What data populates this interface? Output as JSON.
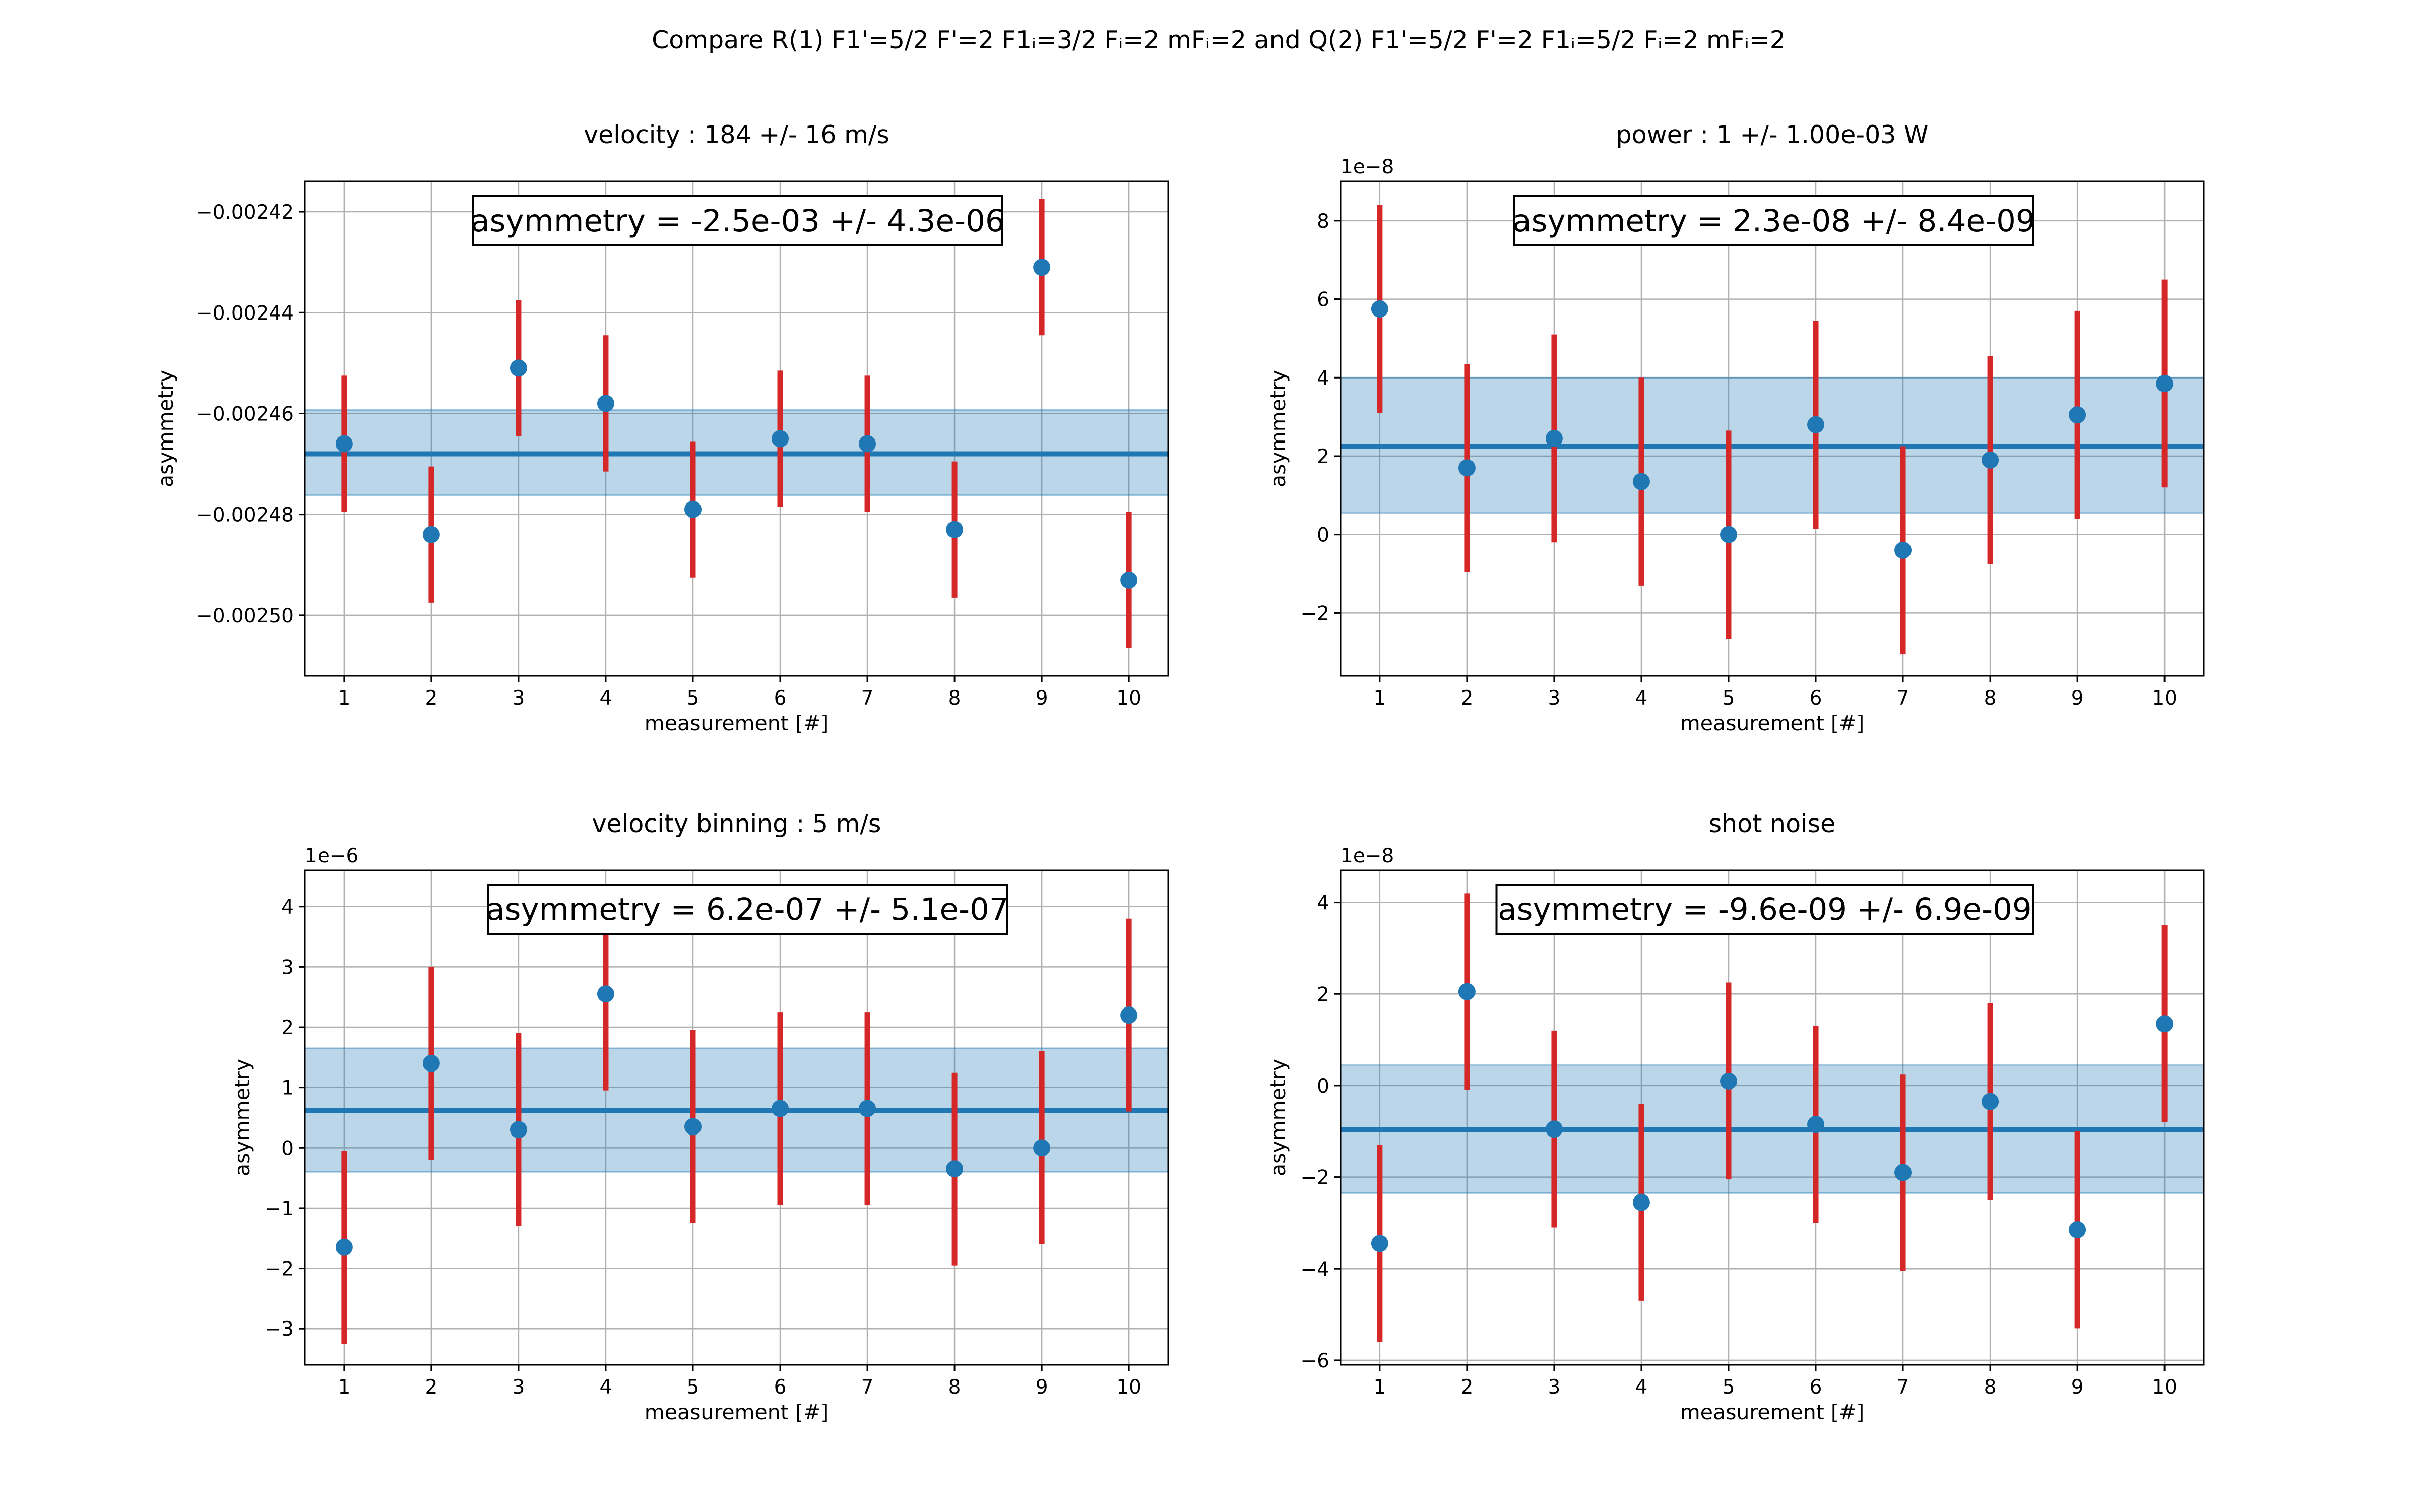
{
  "figure": {
    "title": "Compare R(1) F1'=5/2 F'=2 F1ᵢ=3/2 Fᵢ=2 mFᵢ=2 and Q(2) F1'=5/2 F'=2 F1ᵢ=5/2 Fᵢ=2 mFᵢ=2"
  },
  "colors": {
    "point": "#1f77b4",
    "errorbar": "#d62728",
    "mean_line": "#1f77b4",
    "band": "#1f77b4",
    "grid": "#b0b0b0"
  },
  "chart_data": [
    {
      "type": "scatter",
      "title": "velocity : 184 +/- 16 m/s",
      "xlabel": "measurement [#]",
      "ylabel": "asymmetry",
      "offset_label": "",
      "annotation": "asymmetry = -2.5e-03 +/- 4.3e-06",
      "grid": true,
      "xlim": [
        0.55,
        10.45
      ],
      "ylim": [
        -0.002512,
        -0.002414
      ],
      "x": [
        1,
        2,
        3,
        4,
        5,
        6,
        7,
        8,
        9,
        10
      ],
      "y": [
        -0.002466,
        -0.002484,
        -0.002451,
        -0.002458,
        -0.002479,
        -0.002465,
        -0.002466,
        -0.002483,
        -0.002431,
        -0.002493
      ],
      "yerr": [
        1.35e-05,
        1.35e-05,
        1.35e-05,
        1.35e-05,
        1.35e-05,
        1.35e-05,
        1.35e-05,
        1.35e-05,
        1.35e-05,
        1.35e-05
      ],
      "mean": -0.002468,
      "band": [
        -0.0024762,
        -0.0024593
      ],
      "yticks": [
        -0.0025,
        -0.00248,
        -0.00246,
        -0.00244,
        -0.00242
      ],
      "ytick_labels": [
        "−0.00250",
        "−0.00248",
        "−0.00246",
        "−0.00244",
        "−0.00242"
      ],
      "xticks": [
        1,
        2,
        3,
        4,
        5,
        6,
        7,
        8,
        9,
        10
      ],
      "xtick_labels": [
        "1",
        "2",
        "3",
        "4",
        "5",
        "6",
        "7",
        "8",
        "9",
        "10"
      ]
    },
    {
      "type": "scatter",
      "title": "power : 1 +/- 1.00e-03 W",
      "xlabel": "measurement [#]",
      "ylabel": "asymmetry",
      "offset_label": "1e−8",
      "annotation": "asymmetry = 2.3e-08 +/- 8.4e-09",
      "grid": true,
      "xlim": [
        0.55,
        10.45
      ],
      "ylim": [
        -3.6,
        9.0
      ],
      "x": [
        1,
        2,
        3,
        4,
        5,
        6,
        7,
        8,
        9,
        10
      ],
      "y": [
        5.75,
        1.7,
        2.45,
        1.35,
        0.0,
        2.8,
        -0.4,
        1.9,
        3.05,
        3.85
      ],
      "yerr": [
        2.65,
        2.65,
        2.65,
        2.65,
        2.65,
        2.65,
        2.65,
        2.65,
        2.65,
        2.65
      ],
      "mean": 2.25,
      "band": [
        0.55,
        4.0
      ],
      "yticks": [
        -2,
        0,
        2,
        4,
        6,
        8
      ],
      "ytick_labels": [
        "−2",
        "0",
        "2",
        "4",
        "6",
        "8"
      ],
      "xticks": [
        1,
        2,
        3,
        4,
        5,
        6,
        7,
        8,
        9,
        10
      ],
      "xtick_labels": [
        "1",
        "2",
        "3",
        "4",
        "5",
        "6",
        "7",
        "8",
        "9",
        "10"
      ]
    },
    {
      "type": "scatter",
      "title": "velocity binning : 5 m/s",
      "xlabel": "measurement [#]",
      "ylabel": "asymmetry",
      "offset_label": "1e−6",
      "annotation": "asymmetry = 6.2e-07 +/- 5.1e-07",
      "grid": true,
      "xlim": [
        0.55,
        10.45
      ],
      "ylim": [
        -3.6,
        4.6
      ],
      "x": [
        1,
        2,
        3,
        4,
        5,
        6,
        7,
        8,
        9,
        10
      ],
      "y": [
        -1.65,
        1.4,
        0.3,
        2.55,
        0.35,
        0.65,
        0.65,
        -0.35,
        0.0,
        2.2
      ],
      "yerr": [
        1.6,
        1.6,
        1.6,
        1.6,
        1.6,
        1.6,
        1.6,
        1.6,
        1.6,
        1.6
      ],
      "mean": 0.62,
      "band": [
        -0.4,
        1.65
      ],
      "yticks": [
        -3,
        -2,
        -1,
        0,
        1,
        2,
        3,
        4
      ],
      "ytick_labels": [
        "−3",
        "−2",
        "−1",
        "0",
        "1",
        "2",
        "3",
        "4"
      ],
      "xticks": [
        1,
        2,
        3,
        4,
        5,
        6,
        7,
        8,
        9,
        10
      ],
      "xtick_labels": [
        "1",
        "2",
        "3",
        "4",
        "5",
        "6",
        "7",
        "8",
        "9",
        "10"
      ]
    },
    {
      "type": "scatter",
      "title": "shot noise",
      "xlabel": "measurement [#]",
      "ylabel": "asymmetry",
      "offset_label": "1e−8",
      "annotation": "asymmetry = -9.6e-09 +/- 6.9e-09",
      "grid": true,
      "xlim": [
        0.55,
        10.45
      ],
      "ylim": [
        -6.1,
        4.7
      ],
      "x": [
        1,
        2,
        3,
        4,
        5,
        6,
        7,
        8,
        9,
        10
      ],
      "y": [
        -3.45,
        2.05,
        -0.95,
        -2.55,
        0.1,
        -0.85,
        -1.9,
        -0.35,
        -3.15,
        1.35
      ],
      "yerr": [
        2.15,
        2.15,
        2.15,
        2.15,
        2.15,
        2.15,
        2.15,
        2.15,
        2.15,
        2.15
      ],
      "mean": -0.96,
      "band": [
        -2.35,
        0.45
      ],
      "yticks": [
        -6,
        -4,
        -2,
        0,
        2,
        4
      ],
      "ytick_labels": [
        "−6",
        "−4",
        "−2",
        "0",
        "2",
        "4"
      ],
      "xticks": [
        1,
        2,
        3,
        4,
        5,
        6,
        7,
        8,
        9,
        10
      ],
      "xtick_labels": [
        "1",
        "2",
        "3",
        "4",
        "5",
        "6",
        "7",
        "8",
        "9",
        "10"
      ]
    }
  ]
}
